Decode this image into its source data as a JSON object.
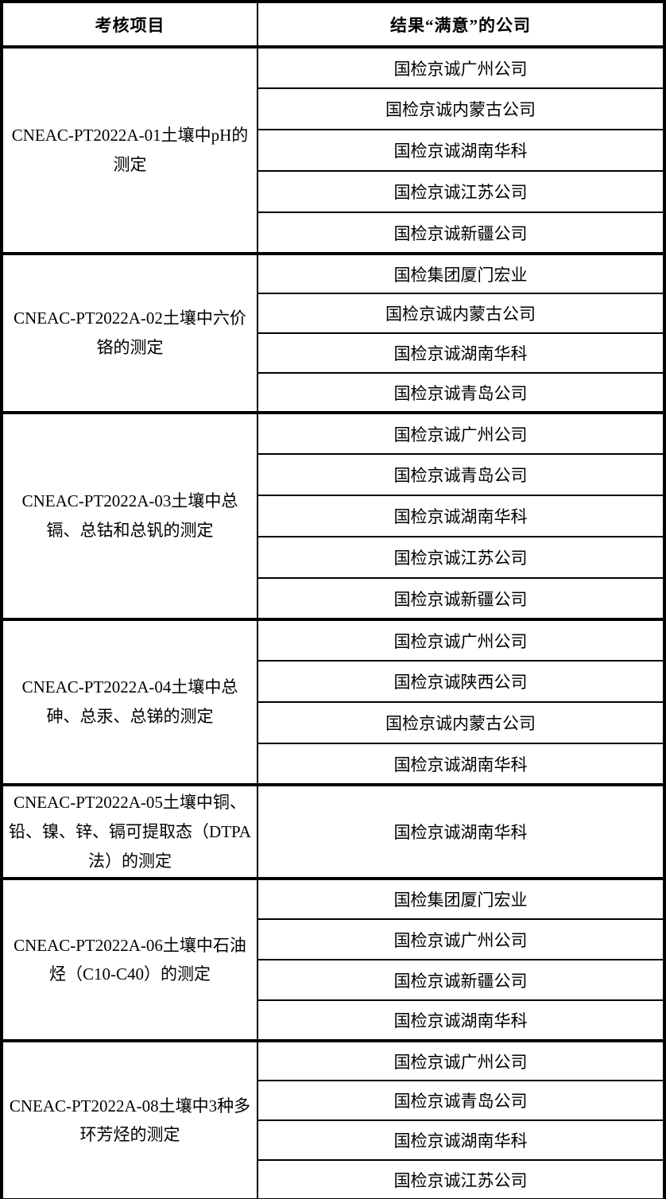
{
  "colors": {
    "border": "#000000",
    "text": "#000000",
    "background": "#ffffff"
  },
  "header": {
    "project_column": "考核项目",
    "company_column": "结果“满意”的公司"
  },
  "table": {
    "sections": [
      {
        "project": "CNEAC-PT2022A-01土壤中pH的测定",
        "companies": [
          "国检京诚广州公司",
          "国检京诚内蒙古公司",
          "国检京诚湖南华科",
          "国检京诚江苏公司",
          "国检京诚新疆公司"
        ]
      },
      {
        "project": "CNEAC-PT2022A-02土壤中六价铬的测定",
        "companies": [
          "国检集团厦门宏业",
          "国检京诚内蒙古公司",
          "国检京诚湖南华科",
          "国检京诚青岛公司"
        ]
      },
      {
        "project": "CNEAC-PT2022A-03土壤中总镉、总钴和总钒的测定",
        "companies": [
          "国检京诚广州公司",
          "国检京诚青岛公司",
          "国检京诚湖南华科",
          "国检京诚江苏公司",
          "国检京诚新疆公司"
        ]
      },
      {
        "project": "CNEAC-PT2022A-04土壤中总砷、总汞、总锑的测定",
        "companies": [
          "国检京诚广州公司",
          "国检京诚陕西公司",
          "国检京诚内蒙古公司",
          "国检京诚湖南华科"
        ]
      },
      {
        "project": "CNEAC-PT2022A-05土壤中铜、铅、镍、锌、镉可提取态（DTPA法）的测定",
        "companies": [
          "国检京诚湖南华科"
        ]
      },
      {
        "project": "CNEAC-PT2022A-06土壤中石油烃（C10-C40）的测定",
        "companies": [
          "国检集团厦门宏业",
          "国检京诚广州公司",
          "国检京诚新疆公司",
          "国检京诚湖南华科"
        ]
      },
      {
        "project": "CNEAC-PT2022A-08土壤中3种多环芳烃的测定",
        "companies": [
          "国检京诚广州公司",
          "国检京诚青岛公司",
          "国检京诚湖南华科",
          "国检京诚江苏公司"
        ]
      }
    ]
  }
}
